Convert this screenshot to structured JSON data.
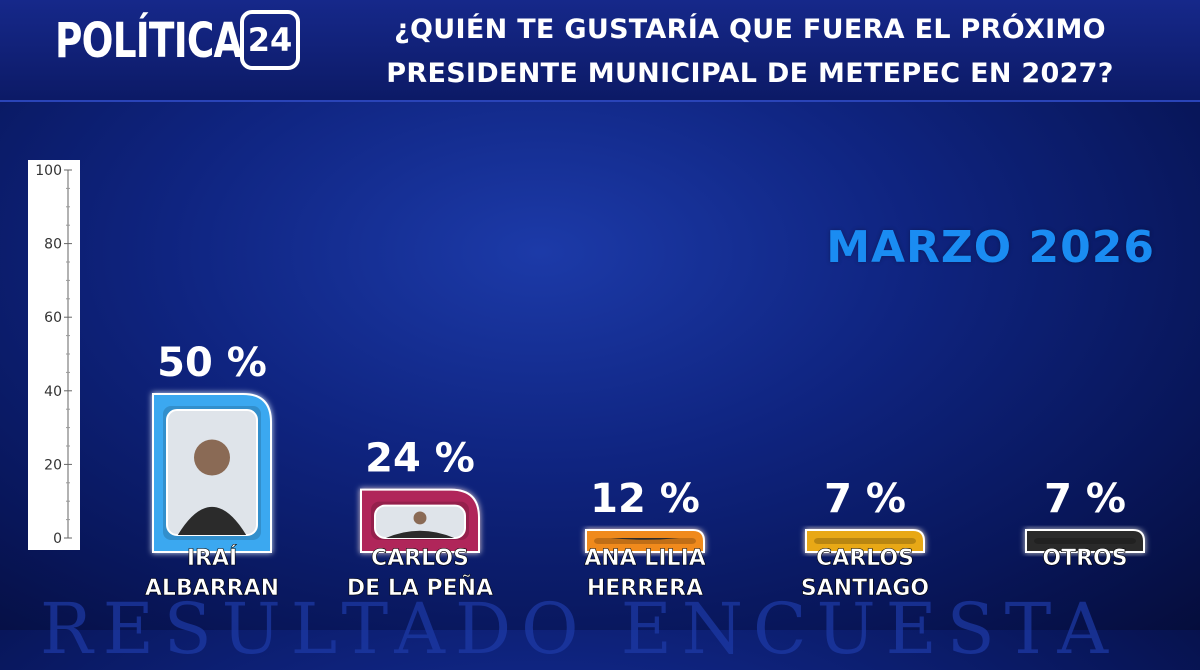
{
  "header": {
    "logo_text": "POLÍTICA",
    "logo_badge": "24",
    "question_line1": "¿QUIÉN TE GUSTARÍA QUE FUERA EL PRÓXIMO",
    "question_line2": "PRESIDENTE MUNICIPAL DE METEPEC EN 2027?"
  },
  "date_label": "MARZO 2026",
  "watermark": "RESULTADO ENCUESTA",
  "chart_data": {
    "type": "bar",
    "categories": [
      [
        "IRAÍ",
        "ALBARRAN"
      ],
      [
        "CARLOS",
        "DE LA PEÑA"
      ],
      [
        "ANA LILIA",
        "HERRERA"
      ],
      [
        "CARLOS",
        "SANTIAGO"
      ],
      [
        "OTROS"
      ]
    ],
    "values": [
      50,
      24,
      12,
      7,
      7
    ],
    "value_labels": [
      "50 %",
      "24 %",
      "12 %",
      "7 %",
      "7 %"
    ],
    "ylim": [
      0,
      100
    ],
    "yticks": [
      "0",
      "20",
      "40",
      "60",
      "80",
      "100"
    ],
    "ytick_values": [
      0,
      20,
      40,
      60,
      80,
      100
    ],
    "bar_colors": [
      "#3aa8f0",
      "#b0285a",
      "#f08a1a",
      "#e8a818",
      "#2a2a2a"
    ],
    "has_photo": [
      true,
      true,
      true,
      false,
      false
    ]
  }
}
